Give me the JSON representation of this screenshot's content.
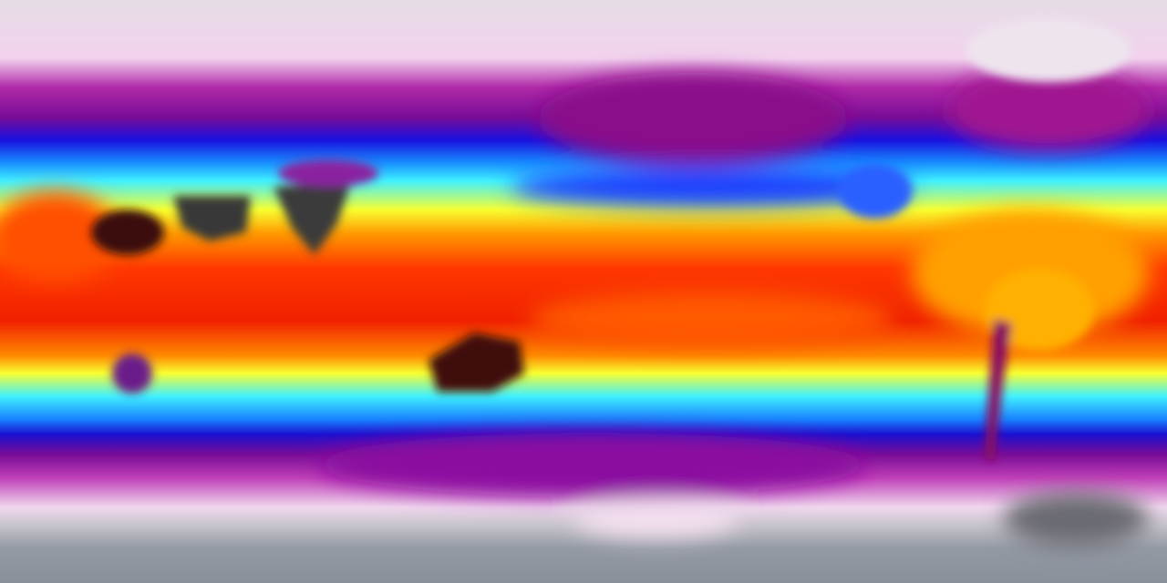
{
  "map": {
    "projection": "equirectangular",
    "palette": [
      "#e8dbe6",
      "#f0c8ec",
      "#a0189a",
      "#6a0a8a",
      "#1a10e0",
      "#1080ff",
      "#40f0ff",
      "#f0ff30",
      "#ffb000",
      "#ff4000",
      "#e01000",
      "#a01020",
      "#383838",
      "#8c929c"
    ],
    "colors": {
      "polar": "#e6dde6",
      "cold": "#9a1890",
      "cool": "#1810d8",
      "mild": "#40e8ff",
      "warm": "#f8ff30",
      "hot": "#ff3000",
      "extreme": "#3a3838",
      "antarctic": "#8c929c"
    }
  }
}
